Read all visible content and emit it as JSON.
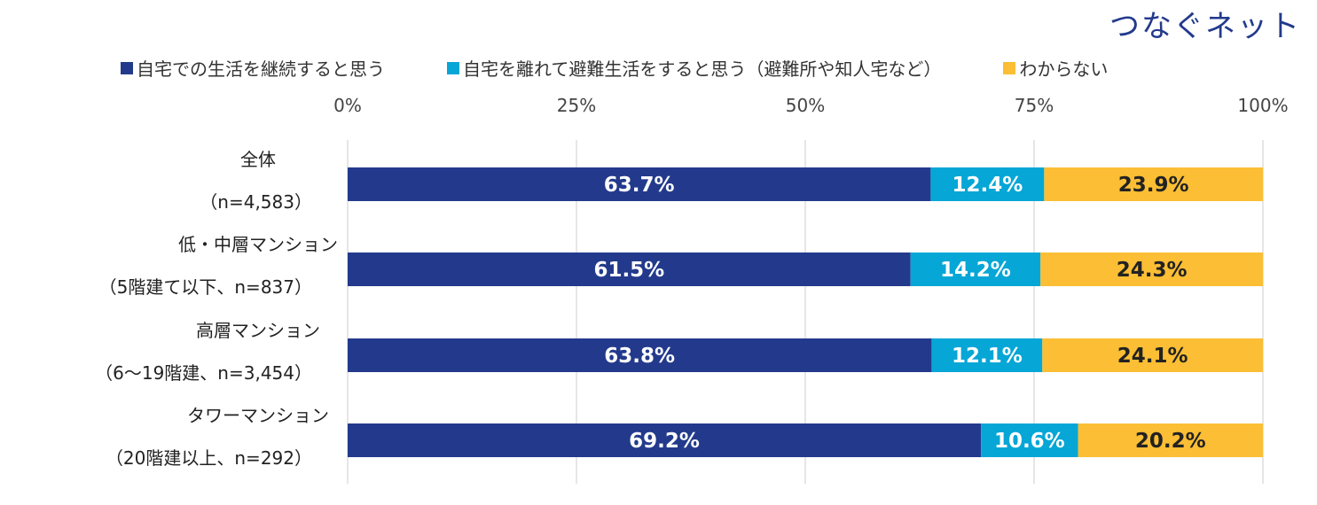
{
  "logo_text": "つなぐネット",
  "chart_data": {
    "type": "bar",
    "orientation": "horizontal",
    "stacked": true,
    "percent_stacked": true,
    "xlim": [
      0,
      100
    ],
    "ticks": [
      "0%",
      "25%",
      "50%",
      "75%",
      "100%"
    ],
    "tick_values": [
      0,
      25,
      50,
      75,
      100
    ],
    "grid": true,
    "legend_position": "top",
    "categories": [
      [
        "全体",
        "（n=4,583）"
      ],
      [
        "低・中層マンション",
        "（5階建て以下、n=837）"
      ],
      [
        "高層マンション",
        "（6～19階建、n=3,454）"
      ],
      [
        "タワーマンション",
        "（20階建以上、n=292）"
      ]
    ],
    "series": [
      {
        "name": "自宅での生活を継続すると思う",
        "color": "#233a8c",
        "label_color": "#ffffff",
        "values": [
          63.7,
          61.5,
          63.8,
          69.2
        ],
        "labels": [
          "63.7%",
          "61.5%",
          "63.8%",
          "69.2%"
        ]
      },
      {
        "name": "自宅を離れて避難生活をすると思う（避難所や知人宅など）",
        "color": "#06a6d6",
        "label_color": "#ffffff",
        "values": [
          12.4,
          14.2,
          12.1,
          10.6
        ],
        "labels": [
          "12.4%",
          "14.2%",
          "12.1%",
          "10.6%"
        ]
      },
      {
        "name": "わからない",
        "color": "#fbbe34",
        "label_color": "#222222",
        "values": [
          23.9,
          24.3,
          24.1,
          20.2
        ],
        "labels": [
          "23.9%",
          "24.3%",
          "24.1%",
          "20.2%"
        ]
      }
    ]
  }
}
